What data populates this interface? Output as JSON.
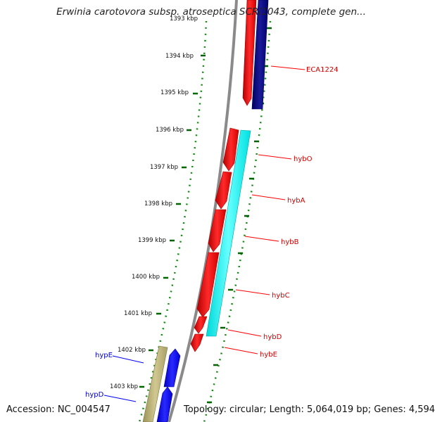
{
  "title": "Erwinia carotovora subsp. atroseptica SCRI1043, complete gen...",
  "footer": {
    "accession": "Accession: NC_004547",
    "topology": "Topology: circular; Length: 5,064,019 bp; Genes: 4,594"
  },
  "ruler": {
    "labels": [
      "1393 kbp",
      "1394 kbp",
      "1395 kbp",
      "1396 kbp",
      "1397 kbp",
      "1398 kbp",
      "1399 kbp",
      "1400 kbp",
      "1401 kbp",
      "1402 kbp",
      "1403 kbp"
    ]
  },
  "genes": [
    {
      "name": "ECA1224",
      "strand": "forward",
      "color": "#cc0000"
    },
    {
      "name": "hybO",
      "strand": "forward",
      "color": "#cc0000"
    },
    {
      "name": "hybA",
      "strand": "forward",
      "color": "#cc0000"
    },
    {
      "name": "hybB",
      "strand": "forward",
      "color": "#cc0000"
    },
    {
      "name": "hybC",
      "strand": "forward",
      "color": "#cc0000"
    },
    {
      "name": "hybD",
      "strand": "forward",
      "color": "#cc0000"
    },
    {
      "name": "hybE",
      "strand": "forward",
      "color": "#cc0000"
    },
    {
      "name": "hypE",
      "strand": "reverse",
      "color": "#0000cc"
    },
    {
      "name": "hypD",
      "strand": "reverse",
      "color": "#0000cc"
    }
  ],
  "colors": {
    "backbone": "#888888",
    "cds_red": "#ff0000",
    "cds_navy": "#000080",
    "cds_cyan": "#00ffff",
    "cds_blue": "#0000ff",
    "cds_khaki": "#b8b070",
    "tick_green": "#006400"
  }
}
